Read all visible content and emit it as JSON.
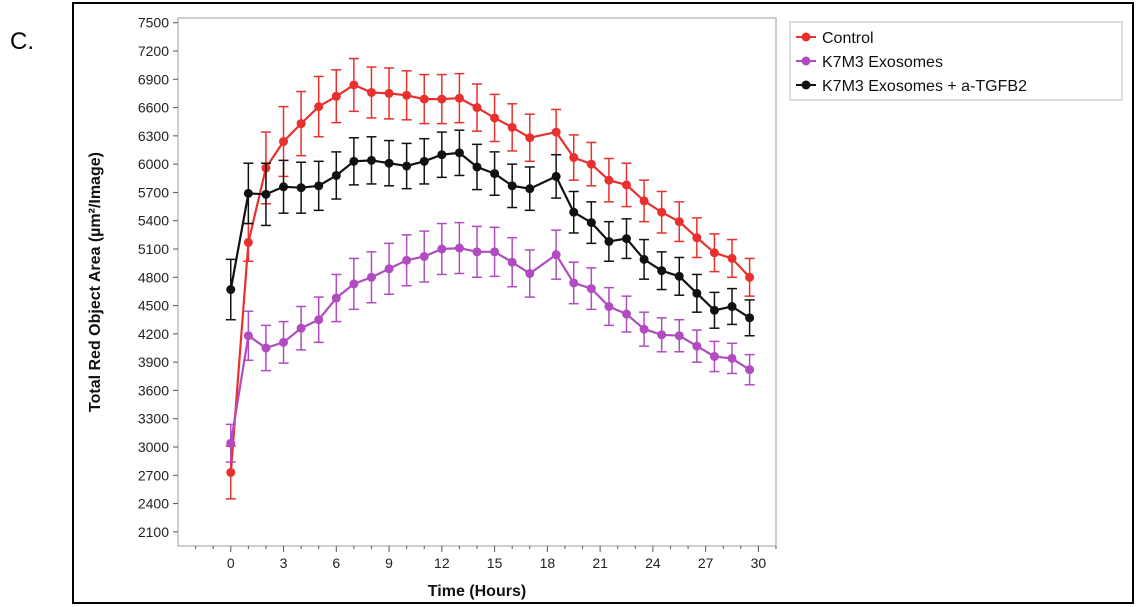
{
  "panel_label": "C.",
  "chart_data": {
    "type": "line",
    "xlabel": "Time (Hours)",
    "ylabel": "Total Red Object Area (µm²/Image)",
    "xlim": [
      -3,
      31
    ],
    "ylim": [
      1950,
      7550
    ],
    "x_ticks": [
      0,
      3,
      6,
      9,
      12,
      15,
      18,
      21,
      24,
      27,
      30
    ],
    "x_tick_labels": [
      "0",
      "3",
      "6",
      "9",
      "12",
      "15",
      "18",
      "21",
      "24",
      "27",
      "30"
    ],
    "y_ticks": [
      2100,
      2400,
      2700,
      3000,
      3300,
      3600,
      3900,
      4200,
      4500,
      4800,
      5100,
      5400,
      5700,
      6000,
      6300,
      6600,
      6900,
      7200,
      7500
    ],
    "y_tick_labels": [
      "2100",
      "2400",
      "2700",
      "3000",
      "3300",
      "3600",
      "3900",
      "4200",
      "4500",
      "4800",
      "5100",
      "5400",
      "5700",
      "6000",
      "6300",
      "6600",
      "6900",
      "7200",
      "7500"
    ],
    "grid": false,
    "legend_position": "top-right outside",
    "x": [
      0,
      1,
      2,
      3,
      4,
      5,
      6,
      7,
      8,
      9,
      10,
      11,
      12,
      13,
      14,
      15,
      16,
      17,
      18.5,
      19.5,
      20.5,
      21.5,
      22.5,
      23.5,
      24.5,
      25.5,
      26.5,
      27.5,
      28.5,
      29.5
    ],
    "series": [
      {
        "name": "Control",
        "color": "#e8312f",
        "values": [
          2730,
          5170,
          5960,
          6240,
          6430,
          6610,
          6720,
          6840,
          6760,
          6750,
          6730,
          6690,
          6690,
          6700,
          6600,
          6490,
          6390,
          6280,
          6340,
          6070,
          6000,
          5830,
          5780,
          5610,
          5490,
          5390,
          5220,
          5060,
          5000,
          4800
        ],
        "errors": [
          280,
          200,
          380,
          370,
          340,
          320,
          280,
          280,
          270,
          270,
          260,
          260,
          260,
          260,
          250,
          250,
          250,
          250,
          240,
          240,
          230,
          230,
          230,
          220,
          220,
          210,
          210,
          200,
          200,
          200
        ]
      },
      {
        "name": "K7M3 Exosomes",
        "color": "#b04cc0",
        "values": [
          3040,
          4180,
          4050,
          4110,
          4260,
          4350,
          4580,
          4730,
          4800,
          4890,
          4980,
          5020,
          5100,
          5110,
          5070,
          5070,
          4960,
          4840,
          5040,
          4740,
          4680,
          4490,
          4410,
          4250,
          4190,
          4180,
          4070,
          3960,
          3940,
          3820
        ],
        "errors": [
          200,
          260,
          240,
          220,
          230,
          240,
          250,
          270,
          270,
          270,
          270,
          270,
          270,
          270,
          270,
          260,
          260,
          250,
          260,
          220,
          220,
          200,
          190,
          180,
          180,
          170,
          170,
          160,
          160,
          160
        ]
      },
      {
        "name": "K7M3 Exosomes + a-TGFB2",
        "color": "#111111",
        "values": [
          4670,
          5690,
          5680,
          5760,
          5750,
          5770,
          5880,
          6030,
          6040,
          6010,
          5980,
          6030,
          6100,
          6120,
          5970,
          5900,
          5770,
          5740,
          5870,
          5490,
          5380,
          5180,
          5210,
          4990,
          4870,
          4810,
          4630,
          4450,
          4490,
          4370
        ],
        "errors": [
          320,
          320,
          330,
          280,
          270,
          260,
          250,
          250,
          250,
          240,
          240,
          240,
          240,
          240,
          240,
          230,
          230,
          230,
          230,
          220,
          220,
          210,
          210,
          210,
          200,
          200,
          200,
          190,
          190,
          190
        ]
      }
    ]
  }
}
